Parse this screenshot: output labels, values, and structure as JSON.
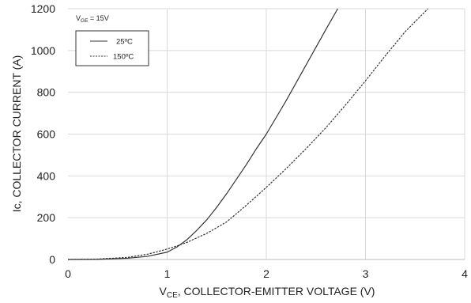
{
  "chart_data": {
    "type": "line",
    "annotation": {
      "main": "V",
      "sub": "GE",
      "rest": " = 15V"
    },
    "xlabel": {
      "main": "V",
      "sub": "CE",
      "rest": ", COLLECTOR-EMITTER VOLTAGE (V)"
    },
    "ylabel": "Ic, COLLECTOR CURRENT (A)",
    "xlim": [
      0,
      4
    ],
    "ylim": [
      0,
      1200
    ],
    "xticks": [
      0,
      1,
      2,
      3,
      4
    ],
    "yticks": [
      0,
      200,
      400,
      600,
      800,
      1000,
      1200
    ],
    "grid": true,
    "legend_position": "top-left",
    "series": [
      {
        "name": "25ºC",
        "style": "solid",
        "color": "#333333",
        "x": [
          0,
          0.3,
          0.6,
          0.8,
          1.0,
          1.1,
          1.2,
          1.3,
          1.4,
          1.5,
          1.6,
          1.7,
          1.8,
          1.9,
          2.0,
          2.2,
          2.4,
          2.6,
          2.72
        ],
        "y": [
          0,
          1,
          6,
          15,
          35,
          60,
          95,
          140,
          190,
          250,
          315,
          385,
          455,
          530,
          600,
          760,
          930,
          1100,
          1200
        ]
      },
      {
        "name": "150ºC",
        "style": "dashed",
        "color": "#333333",
        "x": [
          0,
          0.3,
          0.6,
          0.8,
          0.9,
          1.0,
          1.1,
          1.2,
          1.4,
          1.6,
          1.8,
          2.0,
          2.2,
          2.4,
          2.6,
          2.8,
          3.0,
          3.2,
          3.4,
          3.63
        ],
        "y": [
          0,
          2,
          10,
          25,
          37,
          50,
          65,
          82,
          125,
          180,
          260,
          345,
          435,
          530,
          630,
          740,
          855,
          975,
          1090,
          1200
        ]
      }
    ]
  }
}
